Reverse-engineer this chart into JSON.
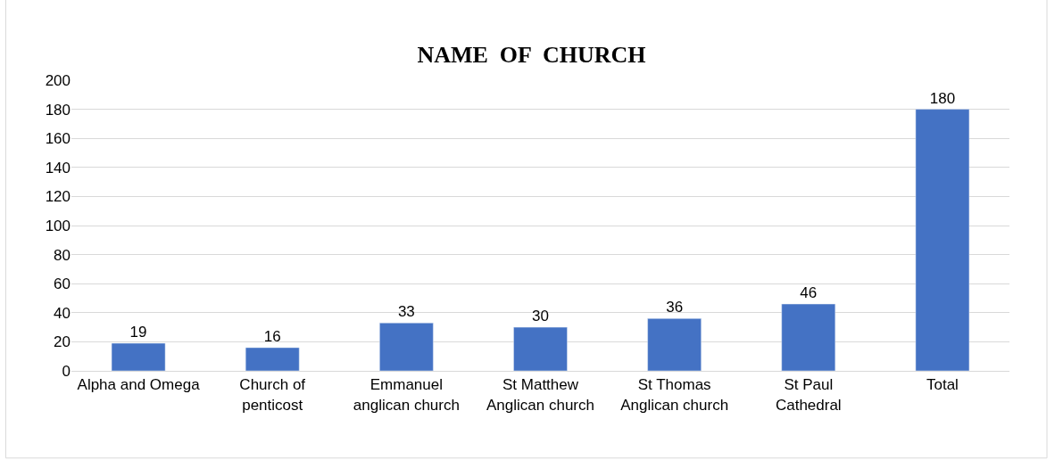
{
  "chart_data": {
    "type": "bar",
    "title": "NAME  OF  CHURCH",
    "categories": [
      "Alpha and Omega",
      "Church of penticost",
      "Emmanuel anglican church",
      "St Matthew Anglican church",
      "St Thomas Anglican church",
      "St Paul Cathedral",
      "Total"
    ],
    "values": [
      19,
      16,
      33,
      30,
      36,
      46,
      180
    ],
    "color": "#4472c4",
    "ylim": [
      0,
      200
    ],
    "yticks": [
      0,
      20,
      40,
      60,
      80,
      100,
      120,
      140,
      160,
      180,
      200
    ],
    "grid": "y",
    "data_labels": true,
    "legend": false
  }
}
